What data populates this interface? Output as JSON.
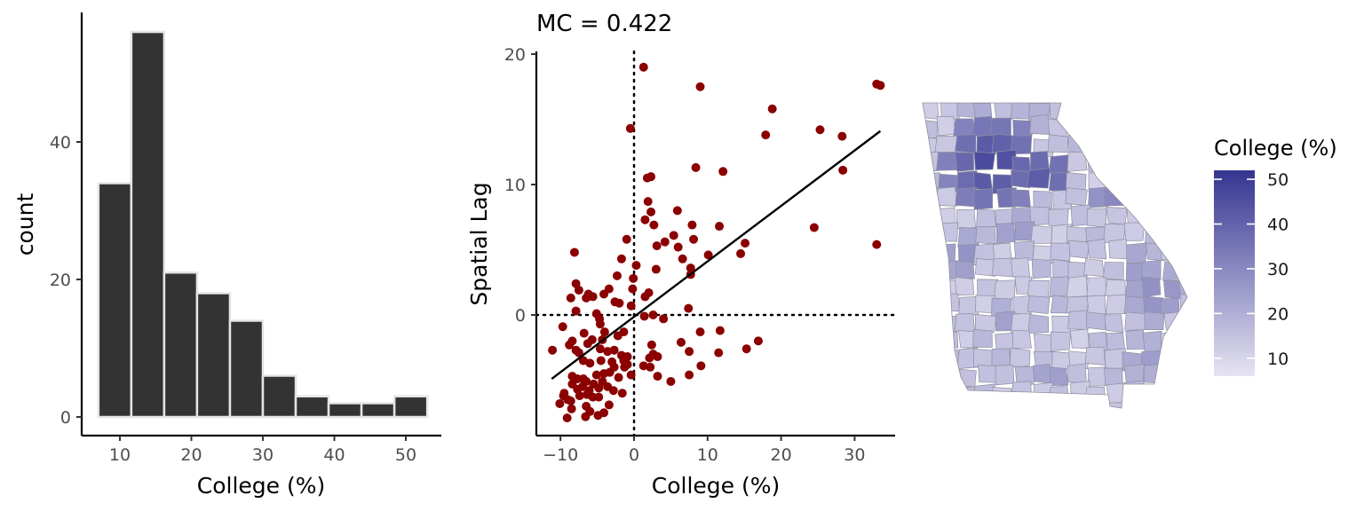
{
  "chart_data": [
    {
      "type": "bar",
      "subtype": "histogram",
      "title": "",
      "xlabel": "College (%)",
      "ylabel": "count",
      "xlim": [
        5,
        55
      ],
      "ylim": [
        0,
        60
      ],
      "xticks": [
        10,
        20,
        30,
        40,
        50
      ],
      "yticks": [
        0,
        20,
        40
      ],
      "bins": [
        {
          "x0": 7,
          "x1": 11.6,
          "count": 34
        },
        {
          "x0": 11.6,
          "x1": 16.2,
          "count": 56
        },
        {
          "x0": 16.2,
          "x1": 20.8,
          "count": 21
        },
        {
          "x0": 20.8,
          "x1": 25.4,
          "count": 18
        },
        {
          "x0": 25.4,
          "x1": 30.0,
          "count": 14
        },
        {
          "x0": 30.0,
          "x1": 34.6,
          "count": 6
        },
        {
          "x0": 34.6,
          "x1": 39.2,
          "count": 3
        },
        {
          "x0": 39.2,
          "x1": 43.8,
          "count": 2
        },
        {
          "x0": 43.8,
          "x1": 48.4,
          "count": 2
        },
        {
          "x0": 48.4,
          "x1": 53.0,
          "count": 3
        }
      ],
      "bar_color": "#333333",
      "bar_outline": "#e5e5e5",
      "grid": false
    },
    {
      "type": "scatter",
      "title": "MC = 0.422",
      "xlabel": "College (%)",
      "ylabel": "Spatial Lag",
      "xlim": [
        -13,
        35.5
      ],
      "ylim": [
        -9.3,
        20.3
      ],
      "xticks": [
        -10,
        0,
        10,
        20,
        30
      ],
      "yticks": [
        0,
        10,
        20
      ],
      "point_color": "#8b0000",
      "grid": false,
      "reference_lines": {
        "x": 0,
        "y": 0,
        "style": "dotted"
      },
      "fit_line": {
        "x": [
          -11.2,
          33.5
        ],
        "y": [
          -4.9,
          14.1
        ]
      },
      "points": [
        [
          1.3,
          19.0
        ],
        [
          9.0,
          17.5
        ],
        [
          33.0,
          17.7
        ],
        [
          33.5,
          17.6
        ],
        [
          18.8,
          15.8
        ],
        [
          -0.5,
          14.3
        ],
        [
          25.3,
          14.2
        ],
        [
          28.3,
          13.7
        ],
        [
          17.9,
          13.8
        ],
        [
          8.4,
          11.3
        ],
        [
          12.1,
          11.0
        ],
        [
          28.4,
          11.1
        ],
        [
          2.3,
          10.6
        ],
        [
          1.8,
          10.5
        ],
        [
          1.9,
          8.7
        ],
        [
          2.3,
          7.9
        ],
        [
          5.9,
          8.0
        ],
        [
          1.5,
          7.3
        ],
        [
          7.9,
          6.9
        ],
        [
          11.6,
          6.8
        ],
        [
          24.5,
          6.7
        ],
        [
          2.7,
          6.9
        ],
        [
          -1.0,
          5.8
        ],
        [
          4.2,
          5.6
        ],
        [
          3.1,
          5.3
        ],
        [
          5.4,
          6.1
        ],
        [
          6.0,
          5.2
        ],
        [
          8.1,
          5.8
        ],
        [
          15.1,
          5.5
        ],
        [
          14.5,
          4.7
        ],
        [
          10.1,
          4.6
        ],
        [
          6.6,
          4.3
        ],
        [
          -1.7,
          4.3
        ],
        [
          -8.1,
          4.8
        ],
        [
          33.0,
          5.4
        ],
        [
          0.3,
          3.8
        ],
        [
          3.0,
          3.5
        ],
        [
          7.7,
          3.6
        ],
        [
          -2.3,
          3.0
        ],
        [
          -0.1,
          2.8
        ],
        [
          7.7,
          3.1
        ],
        [
          -7.9,
          2.4
        ],
        [
          -7.5,
          1.9
        ],
        [
          -6.2,
          1.6
        ],
        [
          -3.4,
          2.0
        ],
        [
          -0.2,
          2.0
        ],
        [
          2.0,
          1.7
        ],
        [
          1.5,
          1.4
        ],
        [
          -6.5,
          1.3
        ],
        [
          -5.6,
          1.4
        ],
        [
          -4.1,
          1.6
        ],
        [
          -2.6,
          1.0
        ],
        [
          -2.0,
          0.9
        ],
        [
          -8.6,
          1.3
        ],
        [
          -0.4,
          0.7
        ],
        [
          7.4,
          0.5
        ],
        [
          -7.9,
          0.3
        ],
        [
          -5.1,
          0.1
        ],
        [
          -4.7,
          -0.3
        ],
        [
          1.4,
          -0.1
        ],
        [
          2.6,
          0.0
        ],
        [
          4.0,
          -0.3
        ],
        [
          -9.7,
          -0.9
        ],
        [
          -4.6,
          -0.7
        ],
        [
          -6.8,
          -1.4
        ],
        [
          -4.0,
          -1.3
        ],
        [
          -1.4,
          -1.3
        ],
        [
          -2.2,
          -1.6
        ],
        [
          -5.7,
          -1.9
        ],
        [
          -8.4,
          -2.0
        ],
        [
          -8.8,
          -2.3
        ],
        [
          -7.9,
          -2.7
        ],
        [
          -7.5,
          -2.9
        ],
        [
          -6.3,
          -2.2
        ],
        [
          -4.6,
          -2.6
        ],
        [
          -11.1,
          -2.7
        ],
        [
          -3.6,
          -2.8
        ],
        [
          -2.7,
          -2.7
        ],
        [
          -1.7,
          -3.1
        ],
        [
          -0.9,
          -3.2
        ],
        [
          2.1,
          -3.3
        ],
        [
          3.2,
          -3.2
        ],
        [
          2.6,
          -3.0
        ],
        [
          2.4,
          -2.3
        ],
        [
          6.4,
          -2.1
        ],
        [
          9.0,
          -1.3
        ],
        [
          11.7,
          -1.2
        ],
        [
          16.9,
          -2.0
        ],
        [
          15.3,
          -2.6
        ],
        [
          11.5,
          -2.9
        ],
        [
          7.5,
          -2.8
        ],
        [
          7.5,
          -4.6
        ],
        [
          9.1,
          -3.9
        ],
        [
          -6.9,
          -3.5
        ],
        [
          -6.0,
          -3.7
        ],
        [
          -4.5,
          -3.5
        ],
        [
          -3.0,
          -3.6
        ],
        [
          -2.7,
          -4.0
        ],
        [
          -1.4,
          -3.5
        ],
        [
          -0.9,
          -3.8
        ],
        [
          1.3,
          -3.9
        ],
        [
          2.2,
          -4.0
        ],
        [
          -8.4,
          -4.7
        ],
        [
          -7.7,
          -4.9
        ],
        [
          -6.9,
          -4.9
        ],
        [
          -6.5,
          -5.1
        ],
        [
          -5.1,
          -4.6
        ],
        [
          -4.1,
          -4.5
        ],
        [
          -3.3,
          -4.4
        ],
        [
          -2.1,
          -4.8
        ],
        [
          -0.4,
          -4.6
        ],
        [
          -5.5,
          -5.3
        ],
        [
          -7.0,
          -5.5
        ],
        [
          -7.7,
          -5.7
        ],
        [
          -3.6,
          -5.5
        ],
        [
          -8.4,
          -5.3
        ],
        [
          -6.1,
          -5.8
        ],
        [
          -4.8,
          -5.6
        ],
        [
          -4.3,
          -5.1
        ],
        [
          -2.8,
          -5.8
        ],
        [
          3.2,
          -4.7
        ],
        [
          5.0,
          -5.1
        ],
        [
          -9.5,
          -6.0
        ],
        [
          -9.6,
          -6.2
        ],
        [
          -9.0,
          -6.5
        ],
        [
          -7.4,
          -6.2
        ],
        [
          -6.4,
          -6.1
        ],
        [
          -5.6,
          -6.3
        ],
        [
          -4.8,
          -6.3
        ],
        [
          -1.6,
          -6.0
        ],
        [
          -8.6,
          -6.6
        ],
        [
          -10.1,
          -6.8
        ],
        [
          -8.5,
          -7.2
        ],
        [
          -6.5,
          -7.0
        ],
        [
          -3.4,
          -6.9
        ],
        [
          -6.0,
          -7.4
        ],
        [
          -4.1,
          -7.5
        ],
        [
          -6.6,
          -7.8
        ],
        [
          -4.9,
          -7.7
        ],
        [
          -9.1,
          -7.9
        ],
        [
          -1.3,
          -4.0
        ],
        [
          -4.3,
          -1.9
        ]
      ]
    },
    {
      "type": "heatmap",
      "subtype": "choropleth",
      "title": "",
      "legend_title": "College (%)",
      "legend_ticks": [
        10,
        20,
        30,
        40,
        50
      ],
      "scale_range": [
        6,
        52
      ],
      "color_low": "#e6e4f2",
      "color_high": "#353592",
      "border_color": "#8e8e9e"
    }
  ]
}
